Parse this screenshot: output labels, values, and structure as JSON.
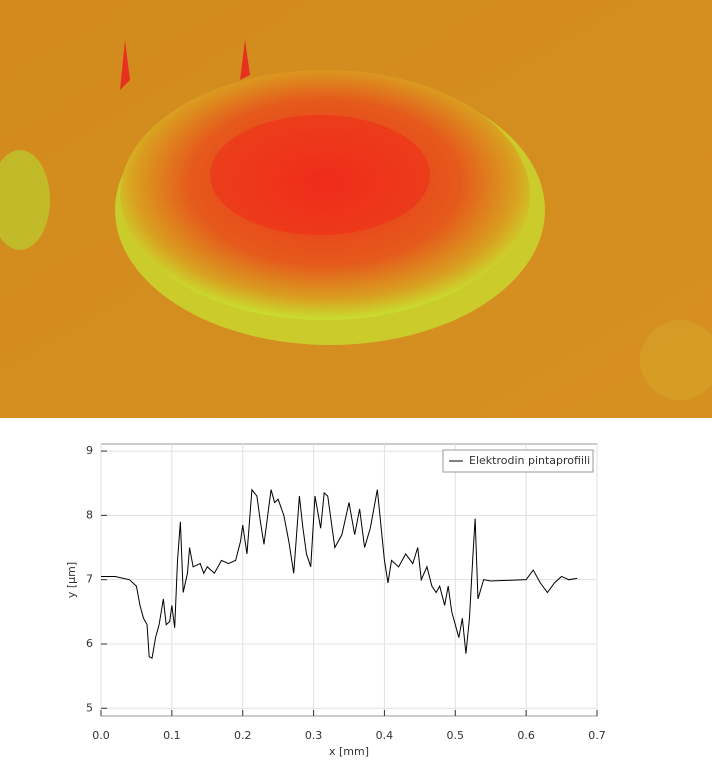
{
  "chart_data": {
    "type": "line",
    "xlabel": "x [mm]",
    "ylabel": "y [µm]",
    "xlim": [
      0,
      0.7
    ],
    "ylim": [
      4.88,
      9.11
    ],
    "xticks": [
      {
        "value": 0,
        "label": "0.0"
      },
      0.1,
      0.2,
      0.3,
      0.4,
      0.5,
      0.6,
      0.7
    ],
    "yticks": [
      5,
      6,
      7,
      8,
      9
    ],
    "grid": true,
    "legend": "upper right",
    "x": [
      0,
      0.02,
      0.04,
      0.05,
      0.055,
      0.06,
      0.065,
      0.068,
      0.072,
      0.077,
      0.082,
      0.088,
      0.092,
      0.097,
      0.1,
      0.104,
      0.108,
      0.112,
      0.116,
      0.122,
      0.125,
      0.13,
      0.14,
      0.145,
      0.15,
      0.16,
      0.17,
      0.18,
      0.19,
      0.197,
      0.2,
      0.206,
      0.213,
      0.22,
      0.225,
      0.23,
      0.24,
      0.245,
      0.25,
      0.258,
      0.265,
      0.272,
      0.28,
      0.285,
      0.29,
      0.296,
      0.302,
      0.31,
      0.315,
      0.32,
      0.33,
      0.34,
      0.35,
      0.358,
      0.365,
      0.372,
      0.38,
      0.39,
      0.4,
      0.405,
      0.41,
      0.42,
      0.43,
      0.44,
      0.447,
      0.452,
      0.46,
      0.467,
      0.473,
      0.478,
      0.485,
      0.49,
      0.495,
      0.5,
      0.505,
      0.51,
      0.515,
      0.52,
      0.525,
      0.528,
      0.532,
      0.54,
      0.55,
      0.6,
      0.61,
      0.62,
      0.63,
      0.64,
      0.65,
      0.66,
      0.672
    ],
    "series": [
      {
        "name": "Elektrodin pintaprofiili",
        "color": "#000000",
        "values": [
          7.05,
          7.05,
          7.0,
          6.9,
          6.6,
          6.4,
          6.3,
          5.8,
          5.78,
          6.1,
          6.3,
          6.7,
          6.3,
          6.35,
          6.6,
          6.25,
          7.3,
          7.9,
          6.8,
          7.1,
          7.5,
          7.2,
          7.25,
          7.1,
          7.2,
          7.1,
          7.3,
          7.25,
          7.3,
          7.6,
          7.85,
          7.4,
          8.4,
          8.3,
          7.9,
          7.55,
          8.4,
          8.2,
          8.25,
          8.0,
          7.6,
          7.1,
          8.3,
          7.8,
          7.4,
          7.2,
          8.3,
          7.8,
          8.35,
          8.3,
          7.5,
          7.7,
          8.2,
          7.7,
          8.1,
          7.5,
          7.8,
          8.4,
          7.3,
          6.95,
          7.3,
          7.2,
          7.4,
          7.25,
          7.5,
          7.0,
          7.2,
          6.9,
          6.8,
          6.9,
          6.6,
          6.9,
          6.5,
          6.3,
          6.1,
          6.4,
          5.85,
          6.4,
          7.4,
          7.95,
          6.7,
          7.0,
          6.98,
          7.0,
          7.15,
          6.95,
          6.8,
          6.95,
          7.05,
          7.0,
          7.02
        ]
      }
    ]
  }
}
